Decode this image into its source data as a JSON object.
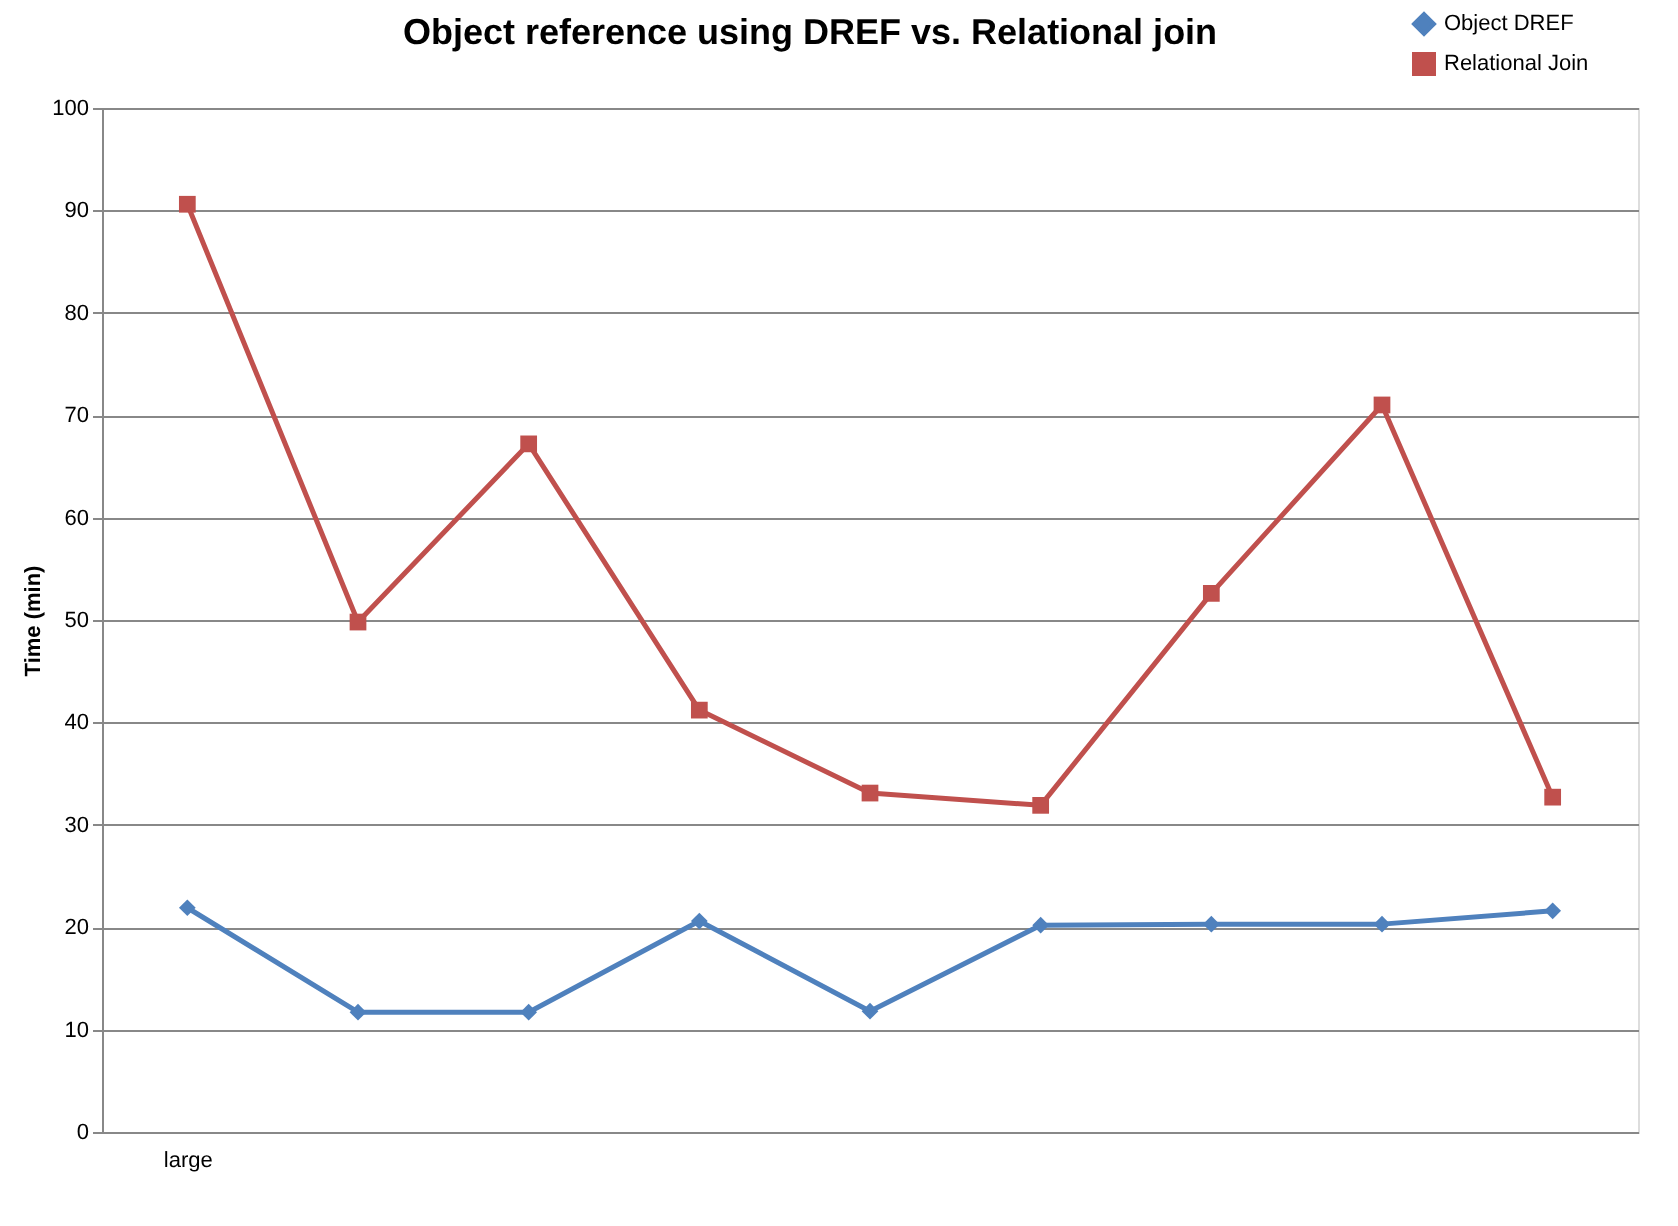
{
  "chart_data": {
    "type": "line",
    "title": "Object reference using DREF vs. Relational join",
    "ylabel": "Time (min)",
    "categories": [
      "large",
      null,
      null,
      null,
      null,
      null,
      null,
      null,
      null
    ],
    "series": [
      {
        "name": "Object DREF",
        "color": "#4f81bd",
        "marker": "diamond",
        "values": [
          21.9,
          11.7,
          11.7,
          20.6,
          11.8,
          20.2,
          20.3,
          20.3,
          21.6
        ]
      },
      {
        "name": "Relational Join",
        "color": "#c0504d",
        "marker": "square",
        "values": [
          90.6,
          49.8,
          67.2,
          41.2,
          33.1,
          31.9,
          52.6,
          71.0,
          32.7
        ]
      }
    ],
    "ylim": [
      0,
      100
    ],
    "yticks": [
      0,
      10,
      20,
      30,
      40,
      50,
      60,
      70,
      80,
      90,
      100
    ],
    "grid": "y",
    "legend": "top right"
  }
}
